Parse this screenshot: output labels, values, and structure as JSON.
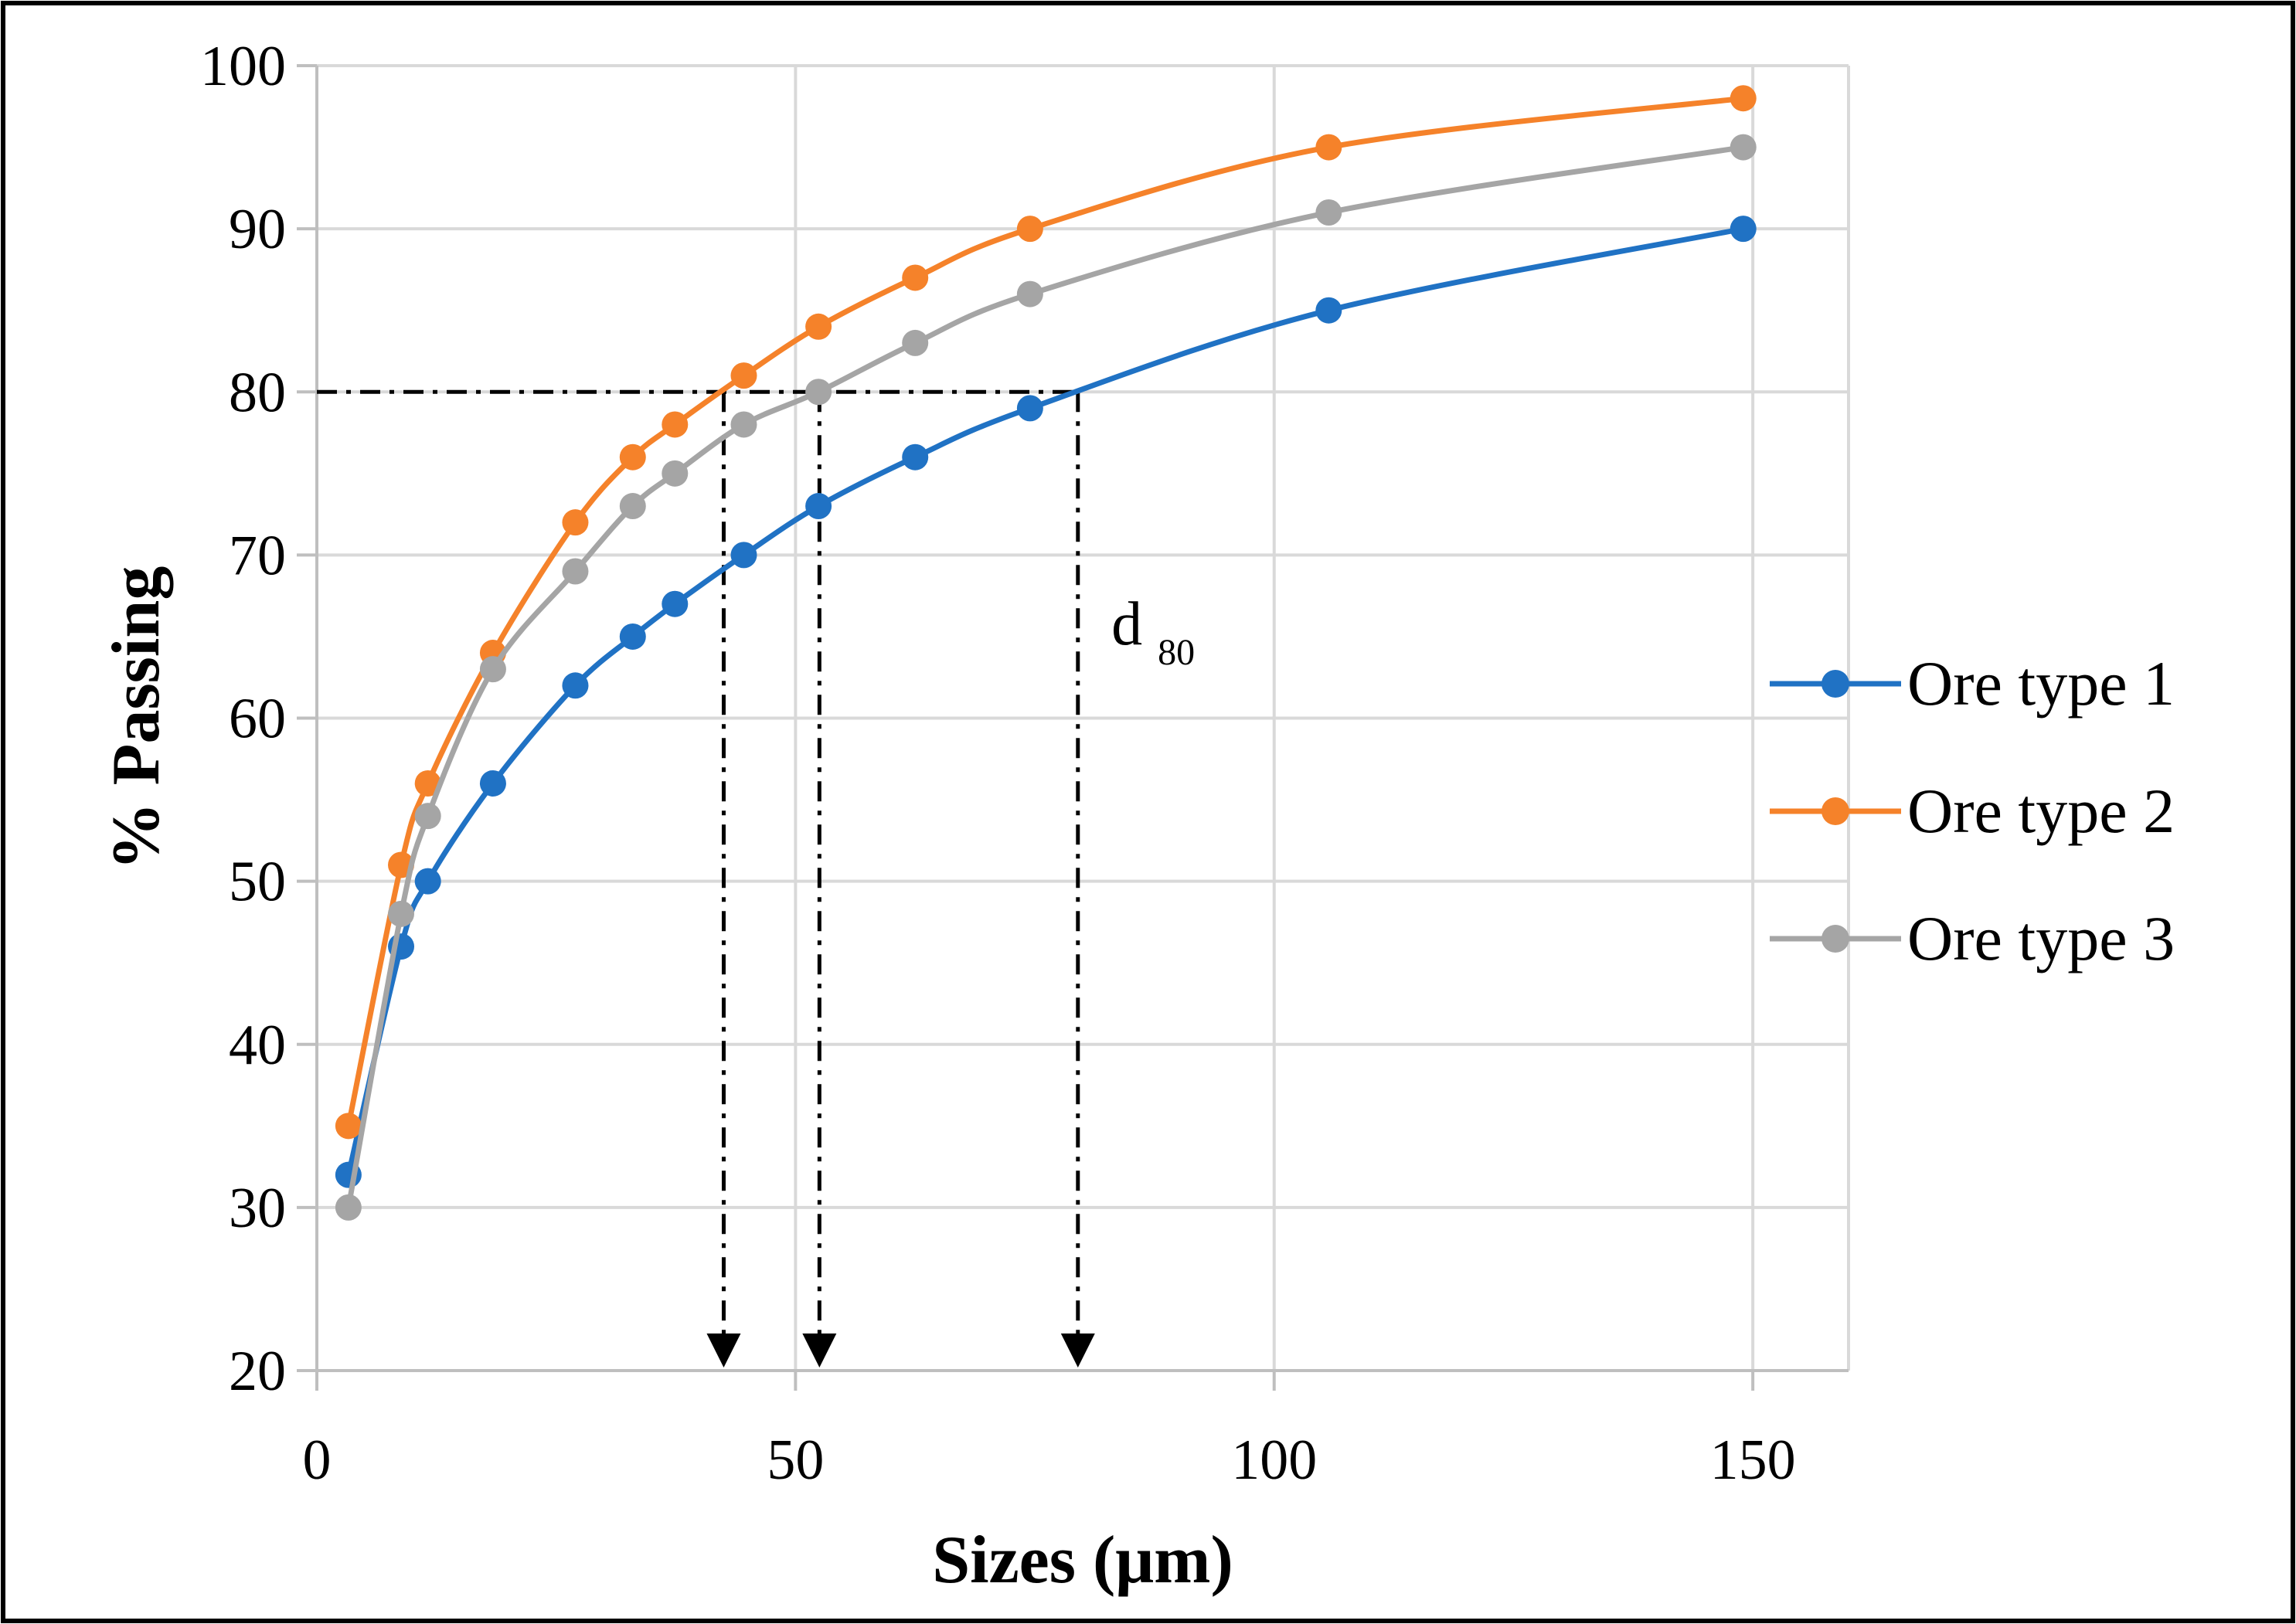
{
  "chart_data": {
    "type": "line",
    "title": "",
    "xlabel": "Sizes (μm)",
    "ylabel": "% Passing",
    "xlim": [
      0,
      160
    ],
    "ylim": [
      20,
      100
    ],
    "xticks": [
      0,
      50,
      100,
      150
    ],
    "yticks": [
      20,
      30,
      40,
      50,
      60,
      70,
      80,
      90,
      100
    ],
    "grid": true,
    "legend_position": "right",
    "series": [
      {
        "name": "Ore type 1",
        "color": "#2072C4",
        "x": [
          3.3,
          8.8,
          11.6,
          18.4,
          27,
          33,
          37.4,
          44.6,
          52.4,
          62.5,
          74.5,
          105.7,
          149
        ],
        "y": [
          32,
          46,
          50,
          56,
          62,
          65,
          67,
          70,
          73,
          76,
          79,
          85,
          90
        ]
      },
      {
        "name": "Ore type 2",
        "color": "#F5822A",
        "x": [
          3.3,
          8.8,
          11.6,
          18.4,
          27,
          33,
          37.4,
          44.6,
          52.4,
          62.5,
          74.5,
          105.7,
          149
        ],
        "y": [
          35,
          51,
          56,
          64,
          72,
          76,
          78,
          81,
          84,
          87,
          90,
          95,
          98
        ]
      },
      {
        "name": "Ore type 3",
        "color": "#A5A5A5",
        "x": [
          3.3,
          8.8,
          11.6,
          18.4,
          27,
          33,
          37.4,
          44.6,
          52.4,
          62.5,
          74.5,
          105.7,
          149
        ],
        "y": [
          30,
          48,
          54,
          63,
          69,
          73,
          75,
          78,
          80,
          83,
          86,
          91,
          95
        ]
      }
    ],
    "annotations": {
      "reference_y": 80,
      "d80_values": [
        42.5,
        52.5,
        79.5
      ],
      "label_main": "d",
      "label_sub": "80",
      "label_anchor": {
        "x": 83,
        "y": 65
      }
    }
  }
}
